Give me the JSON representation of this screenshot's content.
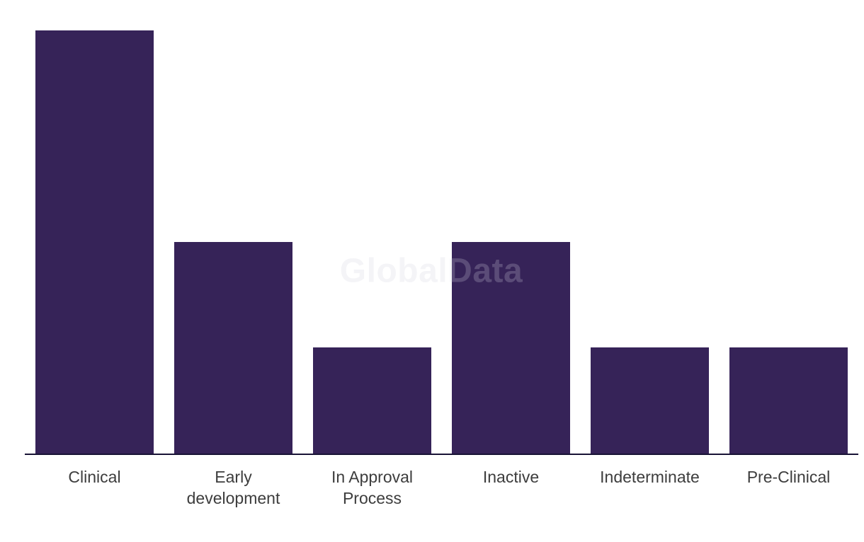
{
  "chart_data": {
    "type": "bar",
    "title": "",
    "xlabel": "",
    "ylabel": "",
    "categories": [
      "Clinical",
      "Early development",
      "In Approval Process",
      "Inactive",
      "Indeterminate",
      "Pre-Clinical"
    ],
    "values": [
      4,
      2,
      1,
      2,
      1,
      1
    ],
    "ylim": [
      0,
      4.3
    ],
    "grid": false,
    "legend": false,
    "y_axis_shown": false,
    "bar_color": "#362358",
    "axis_color": "#181335",
    "tick_label_color": "#3d3d3d"
  },
  "watermark": {
    "text": "GlobalData",
    "color": "rgba(210,208,220,0.24)"
  }
}
